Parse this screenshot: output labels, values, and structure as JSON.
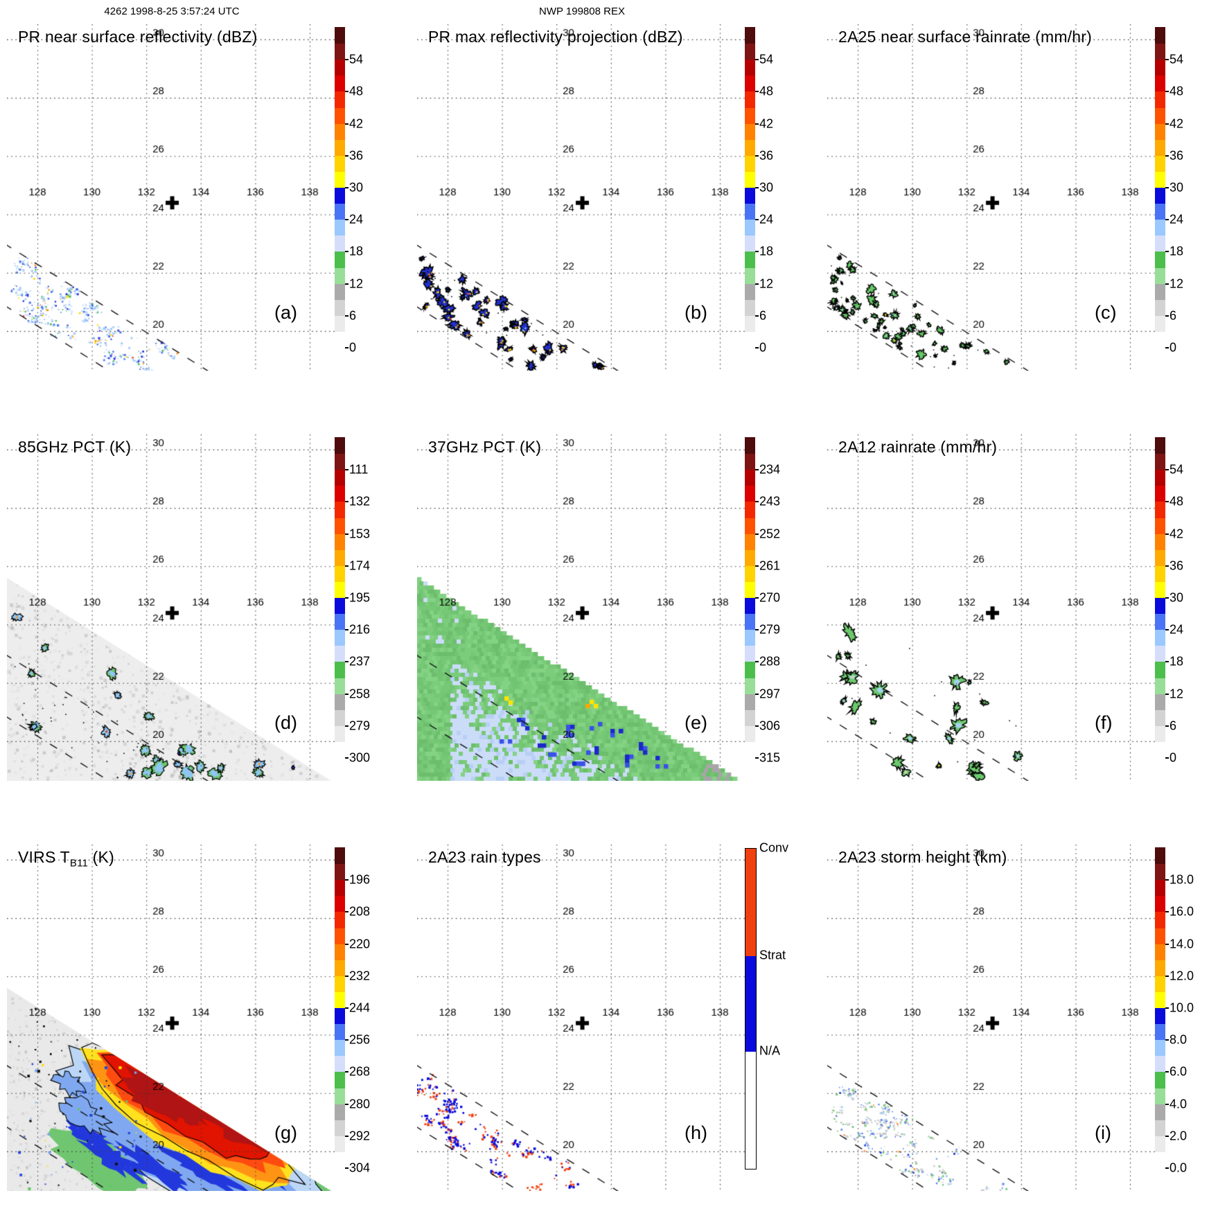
{
  "chart_data": {
    "type": "heatmap",
    "description": "3x3 grid of TRMM satellite overpass map panels with discrete rainbow colorbars, dotted lat/lon grid, PR swath edges shown as dashed diagonal lines, and a bold plus marker at the storm center.",
    "headers": {
      "left": "4262 1998-8-25 3:57:24 UTC",
      "center": "NWP 199808 REX"
    },
    "axes": {
      "lon_ticks": [
        128,
        130,
        132,
        134,
        136,
        138
      ],
      "lat_ticks": [
        20,
        22,
        24,
        26,
        28,
        30
      ],
      "lon_range": [
        126.9,
        139.0
      ],
      "lat_range": [
        18.6,
        30.5
      ],
      "grid": "dotted"
    },
    "marker": {
      "symbol": "+",
      "lon": 132.95,
      "lat": 24.4
    },
    "colorbar_palette_bottom_to_top": [
      "#FFFFFF",
      "#EBEBEB",
      "#D3D3D3",
      "#AAAAAA",
      "#98DE98",
      "#4CBE4C",
      "#D4DEFB",
      "#9AC8FF",
      "#4A74F5",
      "#0A0ADC",
      "#FFFF00",
      "#FFD200",
      "#FFAA00",
      "#FF8200",
      "#FF5200",
      "#F42800",
      "#DC0000",
      "#B40000",
      "#7E1414",
      "#4E0C0C"
    ],
    "swath_colors": {
      "tmi_background_gray": "#EDEDED",
      "tmi_background_green": "#79CA79"
    },
    "raintype_colors": {
      "conv": "#F04010",
      "strat": "#0A0ADC",
      "na": "#FFFFFF"
    },
    "panels": [
      {
        "letter": "(a)",
        "title": "PR near surface reflectivity (dBZ)",
        "units": "dBZ",
        "cbar_labels": [
          "54",
          "48",
          "42",
          "36",
          "30",
          "24",
          "18",
          "12",
          "6",
          "0"
        ],
        "field": "pr_speckle"
      },
      {
        "letter": "(b)",
        "title": "PR max reflectivity projection (dBZ)",
        "units": "dBZ",
        "cbar_labels": [
          "54",
          "48",
          "42",
          "36",
          "30",
          "24",
          "18",
          "12",
          "6",
          "0"
        ],
        "field": "pr_blobs"
      },
      {
        "letter": "(c)",
        "title": "2A25 near surface rainrate (mm/hr)",
        "units": "mm/hr",
        "cbar_labels": [
          "54",
          "48",
          "42",
          "36",
          "30",
          "24",
          "18",
          "12",
          "6",
          "0"
        ],
        "field": "rain_blobs"
      },
      {
        "letter": "(d)",
        "title": "85GHz PCT (K)",
        "units": "K",
        "cbar_labels": [
          "111",
          "132",
          "153",
          "174",
          "195",
          "216",
          "237",
          "258",
          "279",
          "300"
        ],
        "field": "pct85"
      },
      {
        "letter": "(e)",
        "title": "37GHz PCT (K)",
        "units": "K",
        "cbar_labels": [
          "234",
          "243",
          "252",
          "261",
          "270",
          "279",
          "288",
          "297",
          "306",
          "315"
        ],
        "field": "pct37"
      },
      {
        "letter": "(f)",
        "title": "2A12 rainrate (mm/hr)",
        "units": "mm/hr",
        "cbar_labels": [
          "54",
          "48",
          "42",
          "36",
          "30",
          "24",
          "18",
          "12",
          "6",
          "0"
        ],
        "field": "tmi_rain"
      },
      {
        "letter": "(g)",
        "title": "VIRS T",
        "title_sub": "B11",
        "title_suffix": " (K)",
        "units": "K",
        "cbar_labels": [
          "196",
          "208",
          "220",
          "232",
          "244",
          "256",
          "268",
          "280",
          "292",
          "304"
        ],
        "field": "virs"
      },
      {
        "letter": "(h)",
        "title": "2A23 rain types",
        "cbar_type": "raintype",
        "cbar_segments": [
          {
            "label": "Conv",
            "color": "#F04010",
            "frac": 0.335
          },
          {
            "label": "Strat",
            "color": "#0A0ADC",
            "frac": 0.3
          },
          {
            "label": "N/A",
            "color": "#FFFFFF",
            "frac": 0.365
          }
        ],
        "field": "rain_types"
      },
      {
        "letter": "(i)",
        "title": "2A23 storm height (km)",
        "units": "km",
        "cbar_labels": [
          "18.0",
          "16.0",
          "14.0",
          "12.0",
          "10.0",
          "8.0",
          "6.0",
          "4.0",
          "2.0",
          "0.0"
        ],
        "field": "storm_height"
      }
    ]
  }
}
